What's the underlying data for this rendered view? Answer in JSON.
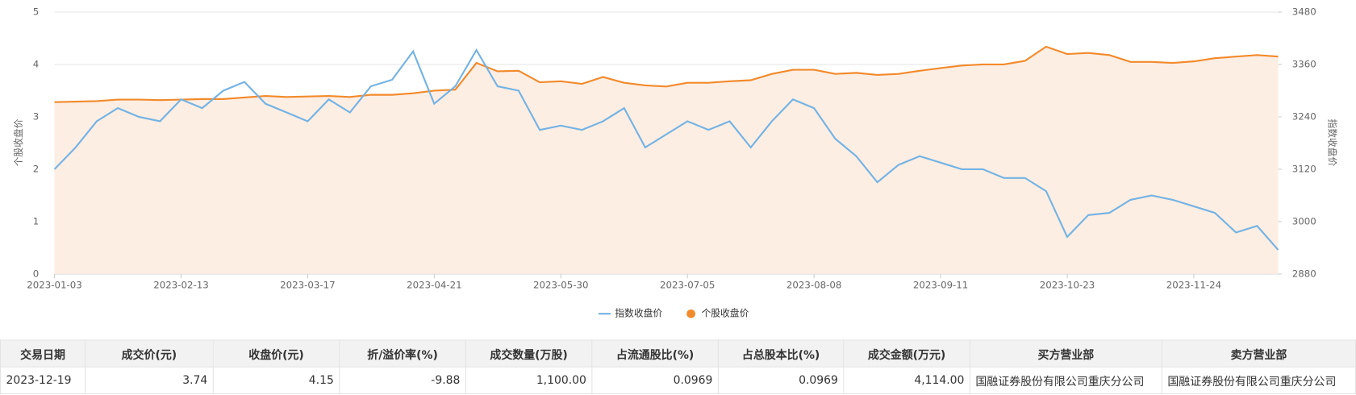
{
  "chart_data": {
    "type": "line",
    "ylabel": "个股收盘价",
    "y2label": "指数收盘价",
    "categories": [
      "2023-01-03",
      null,
      null,
      null,
      null,
      null,
      "2023-02-13",
      null,
      null,
      null,
      null,
      null,
      "2023-03-17",
      null,
      null,
      null,
      null,
      null,
      "2023-04-21",
      null,
      null,
      null,
      null,
      null,
      "2023-05-30",
      null,
      null,
      null,
      null,
      null,
      "2023-07-05",
      null,
      null,
      null,
      null,
      null,
      "2023-08-08",
      null,
      null,
      null,
      null,
      null,
      "2023-09-11",
      null,
      null,
      null,
      null,
      null,
      "2023-10-23",
      null,
      null,
      null,
      null,
      null,
      "2023-11-24",
      null,
      null,
      null,
      null
    ],
    "series": [
      {
        "name": "指数收盘价",
        "color": "#74b3e3",
        "axis": "y2",
        "values": [
          3120,
          3170,
          3230,
          3260,
          3240,
          3230,
          3280,
          3260,
          3300,
          3320,
          3270,
          3250,
          3230,
          3280,
          3250,
          3310,
          3325,
          3390,
          3270,
          3310,
          3393,
          3310,
          3300,
          3210,
          3220,
          3210,
          3230,
          3260,
          3170,
          3200,
          3230,
          3210,
          3230,
          3170,
          3230,
          3280,
          3260,
          3190,
          3150,
          3090,
          3130,
          3150,
          3135,
          3120,
          3120,
          3100,
          3100,
          3070,
          2965,
          3015,
          3020,
          3050,
          3060,
          3050,
          3035,
          3020,
          2975,
          2990,
          2935
        ]
      },
      {
        "name": "个股收盘价",
        "color": "#f28a2b",
        "axis": "y",
        "fill": "#fdeee4",
        "values": [
          3.28,
          3.29,
          3.3,
          3.33,
          3.33,
          3.32,
          3.33,
          3.34,
          3.34,
          3.37,
          3.4,
          3.38,
          3.39,
          3.4,
          3.38,
          3.42,
          3.42,
          3.45,
          3.5,
          3.52,
          4.03,
          3.87,
          3.88,
          3.66,
          3.68,
          3.63,
          3.76,
          3.65,
          3.6,
          3.58,
          3.65,
          3.65,
          3.68,
          3.7,
          3.82,
          3.9,
          3.9,
          3.82,
          3.84,
          3.8,
          3.82,
          3.88,
          3.93,
          3.98,
          4.0,
          4.0,
          4.07,
          4.34,
          4.2,
          4.22,
          4.18,
          4.05,
          4.05,
          4.03,
          4.06,
          4.12,
          4.15,
          4.18,
          4.15
        ]
      }
    ],
    "ylim": [
      0,
      5
    ],
    "yticks": [
      0,
      1,
      2,
      3,
      4,
      5
    ],
    "y2lim": [
      2880,
      3480
    ],
    "y2ticks": [
      2880,
      3000,
      3120,
      3240,
      3360,
      3480
    ],
    "grid": true
  },
  "table": {
    "headers": [
      "交易日期",
      "成交价(元)",
      "收盘价(元)",
      "折/溢价率(%)",
      "成交数量(万股)",
      "占流通股比(%)",
      "占总股本比(%)",
      "成交金额(万元)",
      "买方营业部",
      "卖方营业部"
    ],
    "rows": [
      [
        "2023-12-19",
        "3.74",
        "4.15",
        "-9.88",
        "1,100.00",
        "0.0969",
        "0.0969",
        "4,114.00",
        "国融证券股份有限公司重庆分公司",
        "国融证券股份有限公司重庆分公司"
      ]
    ]
  }
}
